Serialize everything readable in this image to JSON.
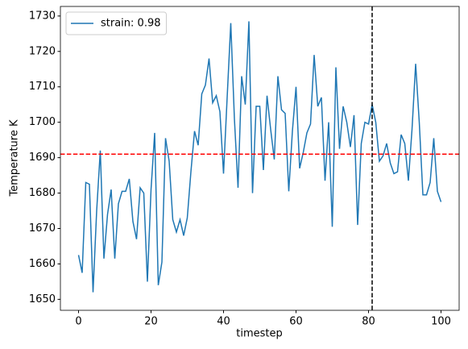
{
  "chart_data": {
    "type": "line",
    "xlabel": "timestep",
    "ylabel": "Temperature K",
    "x": [
      0,
      1,
      2,
      3,
      4,
      5,
      6,
      7,
      8,
      9,
      10,
      11,
      12,
      13,
      14,
      15,
      16,
      17,
      18,
      19,
      20,
      21,
      22,
      23,
      24,
      25,
      26,
      27,
      28,
      29,
      30,
      31,
      32,
      33,
      34,
      35,
      36,
      37,
      38,
      39,
      40,
      41,
      42,
      43,
      44,
      45,
      46,
      47,
      48,
      49,
      50,
      51,
      52,
      53,
      54,
      55,
      56,
      57,
      58,
      59,
      60,
      61,
      62,
      63,
      64,
      65,
      66,
      67,
      68,
      69,
      70,
      71,
      72,
      73,
      74,
      75,
      76,
      77,
      78,
      79,
      80,
      81,
      82,
      83,
      84,
      85,
      86,
      87,
      88,
      89,
      90,
      91,
      92,
      93,
      94,
      95,
      96,
      97,
      98,
      99,
      100
    ],
    "series": [
      {
        "name": "strain: 0.98",
        "color": "#1f77b4",
        "values": [
          1662.5,
          1657.5,
          1683,
          1682.5,
          1652,
          1675,
          1692,
          1661.5,
          1674,
          1681,
          1661.5,
          1677,
          1680.5,
          1680.5,
          1684,
          1672,
          1667,
          1681.5,
          1680,
          1655,
          1681,
          1697,
          1654,
          1660.5,
          1695.5,
          1689,
          1672.5,
          1669,
          1672.5,
          1668,
          1673,
          1686,
          1697.5,
          1693.5,
          1708,
          1710.5,
          1718,
          1705.5,
          1707.5,
          1703,
          1685.5,
          1707,
          1728,
          1701,
          1681.5,
          1713,
          1705,
          1728.5,
          1680,
          1704.5,
          1704.5,
          1686.5,
          1707.5,
          1698,
          1689.5,
          1713,
          1703.5,
          1702.5,
          1680.5,
          1697.5,
          1710,
          1687,
          1691.5,
          1697,
          1699.5,
          1719,
          1704.5,
          1707,
          1683.5,
          1700,
          1670.5,
          1715.5,
          1692.5,
          1704.5,
          1700,
          1693,
          1702,
          1671,
          1694,
          1700,
          1699.5,
          1705,
          1700,
          1689,
          1690.5,
          1694,
          1688.5,
          1685.5,
          1686,
          1696.5,
          1694,
          1683.5,
          1698,
          1716.5,
          1700,
          1679.5,
          1679.5,
          1683,
          1695.5,
          1680.5,
          1677.5
        ]
      }
    ],
    "hline": {
      "value": 1691,
      "color": "#ff0000"
    },
    "vline": {
      "value": 81,
      "color": "#000000"
    },
    "xlim": [
      -5,
      105
    ],
    "xticks": [
      0,
      20,
      40,
      60,
      80,
      100
    ],
    "ylim": [
      1646.9,
      1732.7
    ],
    "yticks": [
      1650,
      1660,
      1670,
      1680,
      1690,
      1700,
      1710,
      1720,
      1730
    ],
    "legend": "upper left"
  }
}
